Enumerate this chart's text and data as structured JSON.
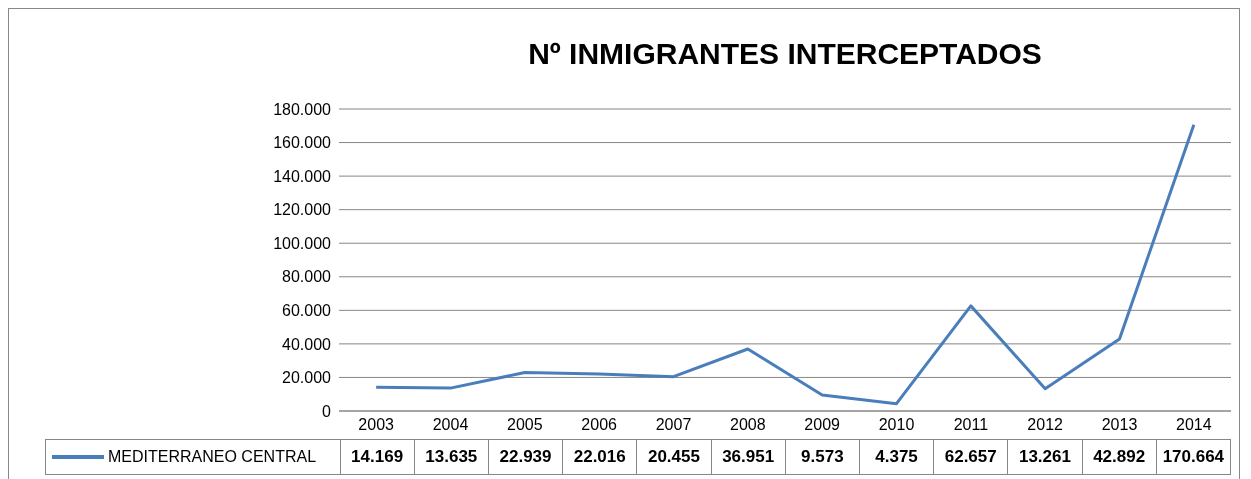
{
  "chart_data": {
    "type": "line",
    "title": "Nº INMIGRANTES INTERCEPTADOS",
    "categories": [
      "2003",
      "2004",
      "2005",
      "2006",
      "2007",
      "2008",
      "2009",
      "2010",
      "2011",
      "2012",
      "2013",
      "2014"
    ],
    "series": [
      {
        "name": "MEDITERRANEO CENTRAL",
        "color": "#4a7ebb",
        "values": [
          14169,
          13635,
          22939,
          22016,
          20455,
          36951,
          9573,
          4375,
          62657,
          13261,
          42892,
          170664
        ],
        "value_labels": [
          "14.169",
          "13.635",
          "22.939",
          "22.016",
          "20.455",
          "36.951",
          "9.573",
          "4.375",
          "62.657",
          "13.261",
          "42.892",
          "170.664"
        ]
      }
    ],
    "ylim": [
      0,
      180000
    ],
    "yticks": [
      {
        "value": 0,
        "label": "0"
      },
      {
        "value": 20000,
        "label": "20.000"
      },
      {
        "value": 40000,
        "label": "40.000"
      },
      {
        "value": 60000,
        "label": "60.000"
      },
      {
        "value": 80000,
        "label": "80.000"
      },
      {
        "value": 100000,
        "label": "100.000"
      },
      {
        "value": 120000,
        "label": "120.000"
      },
      {
        "value": 140000,
        "label": "140.000"
      },
      {
        "value": 160000,
        "label": "160.000"
      },
      {
        "value": 180000,
        "label": "180.000"
      }
    ],
    "grid": "y",
    "legend": "bottom",
    "marker": "none",
    "line_style": "solid"
  }
}
